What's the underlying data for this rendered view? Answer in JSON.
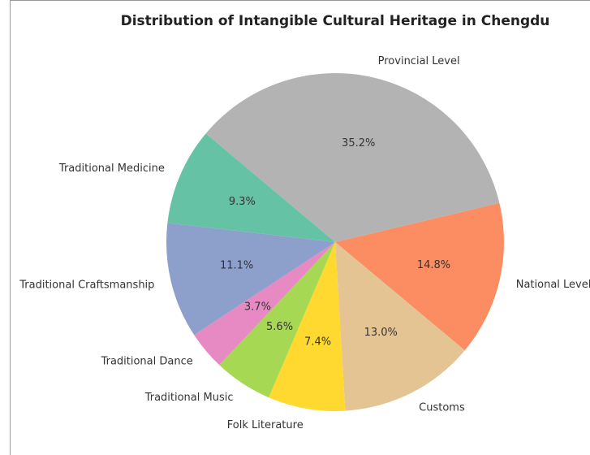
{
  "chart_data": {
    "type": "pie",
    "title": "Distribution of Intangible Cultural Heritage in Chengdu",
    "categories": [
      "National Level",
      "Customs",
      "Folk Literature",
      "Traditional Music",
      "Traditional Dance",
      "Traditional Craftsmanship",
      "Traditional Medicine",
      "Provincial Level"
    ],
    "values": [
      14.8,
      13.0,
      7.4,
      5.6,
      3.7,
      11.1,
      9.3,
      35.2
    ],
    "value_labels": [
      "14.8%",
      "13.0%",
      "7.4%",
      "5.6%",
      "3.7%",
      "11.1%",
      "9.3%",
      "35.2%"
    ],
    "colors": [
      "#fc8d62",
      "#e5c494",
      "#ffd92f",
      "#a6d854",
      "#e78ac3",
      "#8da0cb",
      "#66c2a5",
      "#b3b3b3"
    ]
  }
}
